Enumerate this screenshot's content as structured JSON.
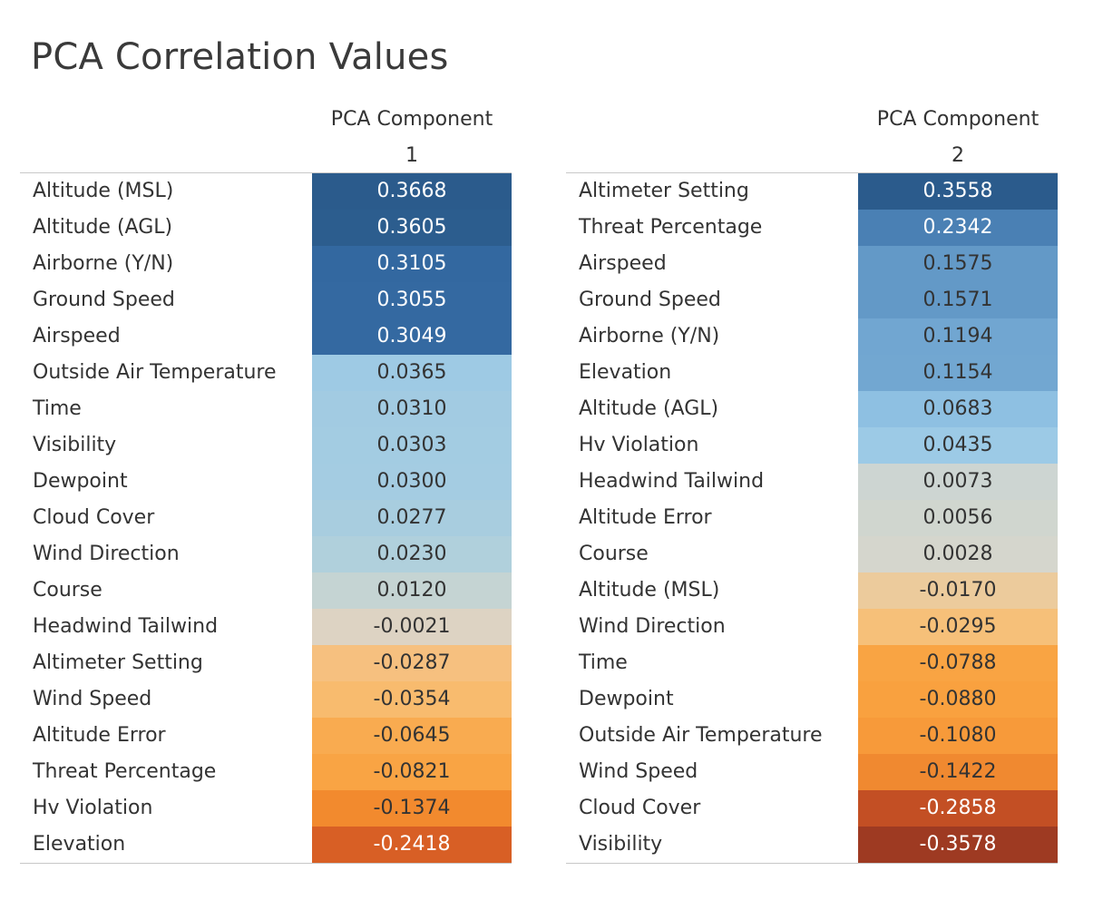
{
  "title": "PCA Correlation Values",
  "chart_data": {
    "type": "table",
    "panels": [
      {
        "header_line1": "PCA Component",
        "header_line2": "1",
        "rows": [
          {
            "label": "Altitude (MSL)",
            "value": "0.3668",
            "color": "#2b5b8c"
          },
          {
            "label": "Altitude (AGL)",
            "value": "0.3605",
            "color": "#2c5d8e"
          },
          {
            "label": "Airborne (Y/N)",
            "value": "0.3105",
            "color": "#3368a0"
          },
          {
            "label": "Ground Speed",
            "value": "0.3055",
            "color": "#3469a1"
          },
          {
            "label": "Airspeed",
            "value": "0.3049",
            "color": "#3469a1"
          },
          {
            "label": "Outside Air Temperature",
            "value": "0.0365",
            "color": "#9ecae4"
          },
          {
            "label": "Time",
            "value": "0.0310",
            "color": "#a2cbe2"
          },
          {
            "label": "Visibility",
            "value": "0.0303",
            "color": "#a3cce2"
          },
          {
            "label": "Dewpoint",
            "value": "0.0300",
            "color": "#a4cce2"
          },
          {
            "label": "Cloud Cover",
            "value": "0.0277",
            "color": "#a8cddf"
          },
          {
            "label": "Wind Direction",
            "value": "0.0230",
            "color": "#b0d0dc"
          },
          {
            "label": "Course",
            "value": "0.0120",
            "color": "#c5d4d3"
          },
          {
            "label": "Headwind Tailwind",
            "value": "-0.0021",
            "color": "#ddd3c3"
          },
          {
            "label": "Altimeter Setting",
            "value": "-0.0287",
            "color": "#f6c07f"
          },
          {
            "label": "Wind Speed",
            "value": "-0.0354",
            "color": "#f8bb6e"
          },
          {
            "label": "Altitude Error",
            "value": "-0.0645",
            "color": "#f9ab50"
          },
          {
            "label": "Threat Percentage",
            "value": "-0.0821",
            "color": "#f9a444"
          },
          {
            "label": "Hv Violation",
            "value": "-0.1374",
            "color": "#f28a2e"
          },
          {
            "label": "Elevation",
            "value": "-0.2418",
            "color": "#d85f25"
          }
        ]
      },
      {
        "header_line1": "PCA Component",
        "header_line2": "2",
        "rows": [
          {
            "label": "Altimeter Setting",
            "value": "0.3558",
            "color": "#2b5b8c"
          },
          {
            "label": "Threat Percentage",
            "value": "0.2342",
            "color": "#4a80b4"
          },
          {
            "label": "Airspeed",
            "value": "0.1575",
            "color": "#6399c7"
          },
          {
            "label": "Ground Speed",
            "value": "0.1571",
            "color": "#6399c7"
          },
          {
            "label": "Airborne (Y/N)",
            "value": "0.1194",
            "color": "#71a6d1"
          },
          {
            "label": "Elevation",
            "value": "0.1154",
            "color": "#72a7d1"
          },
          {
            "label": "Altitude (AGL)",
            "value": "0.0683",
            "color": "#8ec0e2"
          },
          {
            "label": "Hv Violation",
            "value": "0.0435",
            "color": "#9ccae6"
          },
          {
            "label": "Headwind Tailwind",
            "value": "0.0073",
            "color": "#cdd5d2"
          },
          {
            "label": "Altitude Error",
            "value": "0.0056",
            "color": "#d0d6cf"
          },
          {
            "label": "Course",
            "value": "0.0028",
            "color": "#d5d6cd"
          },
          {
            "label": "Altitude (MSL)",
            "value": "-0.0170",
            "color": "#eccb9c"
          },
          {
            "label": "Wind Direction",
            "value": "-0.0295",
            "color": "#f6c079"
          },
          {
            "label": "Time",
            "value": "-0.0788",
            "color": "#f9a443"
          },
          {
            "label": "Dewpoint",
            "value": "-0.0880",
            "color": "#f9a13f"
          },
          {
            "label": "Outside Air Temperature",
            "value": "-0.1080",
            "color": "#f79a3a"
          },
          {
            "label": "Wind Speed",
            "value": "-0.1422",
            "color": "#f08930"
          },
          {
            "label": "Cloud Cover",
            "value": "-0.2858",
            "color": "#c34f24"
          },
          {
            "label": "Visibility",
            "value": "-0.3578",
            "color": "#9e3a22"
          }
        ]
      }
    ]
  }
}
